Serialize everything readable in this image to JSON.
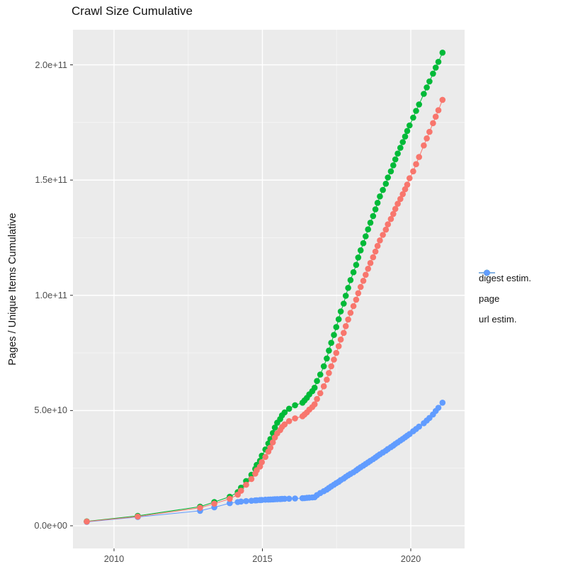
{
  "title": "Crawl Size Cumulative",
  "colors": {
    "panel_bg": "#EBEBEB",
    "grid_major": "#FFFFFF",
    "grid_minor": "#F6F6F6",
    "tick_mark": "#333333",
    "axis_text": "#4D4D4D",
    "title_text": "#141414"
  },
  "chart_data": {
    "type": "scatter",
    "title": "Crawl Size Cumulative",
    "xlabel": "",
    "ylabel": "Pages / Unique Items Cumulative",
    "legend_position": "right",
    "grid": "on",
    "xlim_years": [
      2008.55,
      2021.8
    ],
    "ylim": [
      -10000000000.0,
      215000000000.0
    ],
    "x_ticks": [
      {
        "label": "2010",
        "year": 2010
      },
      {
        "label": "2015",
        "year": 2015
      },
      {
        "label": "2020",
        "year": 2020
      }
    ],
    "x_minor_years": [
      2012.5,
      2017.5
    ],
    "y_ticks": [
      {
        "label": "0.0e+00",
        "value_e9": 0
      },
      {
        "label": "5.0e+10",
        "value_e9": 50
      },
      {
        "label": "1.0e+11",
        "value_e9": 100
      },
      {
        "label": "1.5e+11",
        "value_e9": 150
      },
      {
        "label": "2.0e+11",
        "value_e9": 200
      }
    ],
    "y_minor_e9": [
      25,
      75,
      125,
      175
    ],
    "x_years": [
      2009.08,
      2010.8,
      2012.9,
      2013.38,
      2013.9,
      2014.17,
      2014.28,
      2014.45,
      2014.63,
      2014.76,
      2014.81,
      2014.92,
      2014.98,
      2015.1,
      2015.2,
      2015.27,
      2015.35,
      2015.42,
      2015.5,
      2015.6,
      2015.66,
      2015.75,
      2015.9,
      2016.1,
      2016.35,
      2016.42,
      2016.5,
      2016.58,
      2016.68,
      2016.76,
      2016.84,
      2016.95,
      2017.07,
      2017.17,
      2017.24,
      2017.32,
      2017.41,
      2017.49,
      2017.57,
      2017.64,
      2017.74,
      2017.81,
      2017.89,
      2017.97,
      2018.07,
      2018.16,
      2018.23,
      2018.31,
      2018.4,
      2018.48,
      2018.56,
      2018.64,
      2018.73,
      2018.81,
      2018.88,
      2018.96,
      2019.06,
      2019.16,
      2019.23,
      2019.33,
      2019.41,
      2019.48,
      2019.56,
      2019.65,
      2019.73,
      2019.81,
      2019.88,
      2019.96,
      2020.08,
      2020.18,
      2020.28,
      2020.44,
      2020.54,
      2020.63,
      2020.75,
      2020.84,
      2020.93,
      2021.07
    ],
    "series": [
      {
        "name": "digest estim.",
        "color": "#F8766D",
        "values_e9": [
          1.8,
          4.0,
          7.8,
          9.6,
          11.7,
          13.5,
          15.2,
          17.8,
          20.3,
          22.6,
          24.1,
          25.7,
          27.6,
          29.9,
          32.2,
          33.9,
          36.2,
          38.3,
          40.1,
          41.5,
          42.9,
          44.0,
          45.4,
          46.6,
          47.5,
          48.3,
          49.2,
          50.4,
          51.5,
          52.7,
          55.0,
          57.5,
          60.5,
          63.4,
          66.3,
          69.2,
          72.1,
          75.0,
          77.9,
          80.8,
          83.7,
          86.6,
          89.5,
          92.4,
          95.3,
          98.1,
          100.9,
          103.6,
          106.3,
          108.9,
          111.5,
          114.0,
          116.5,
          119.0,
          121.4,
          123.8,
          126.2,
          128.5,
          130.8,
          133.1,
          135.3,
          137.5,
          139.7,
          141.8,
          143.9,
          146.0,
          148.0,
          150.8,
          153.8,
          156.9,
          160.0,
          165.0,
          168.1,
          170.9,
          174.7,
          177.5,
          180.3,
          184.8
        ]
      },
      {
        "name": "page",
        "color": "#00BA38",
        "values_e9": [
          1.9,
          4.3,
          8.3,
          10.3,
          12.6,
          14.6,
          16.5,
          19.4,
          22.1,
          24.7,
          26.4,
          28.2,
          30.4,
          33.1,
          35.7,
          37.6,
          40.2,
          42.6,
          44.7,
          46.3,
          47.9,
          49.2,
          50.8,
          52.3,
          53.4,
          54.4,
          55.5,
          57.0,
          58.4,
          59.9,
          62.8,
          65.6,
          69.2,
          72.6,
          76.0,
          79.4,
          82.8,
          86.2,
          89.6,
          93.0,
          96.4,
          99.8,
          103.2,
          106.6,
          110.0,
          113.2,
          116.4,
          119.5,
          122.6,
          125.6,
          128.6,
          131.5,
          134.4,
          137.3,
          140.1,
          142.9,
          145.7,
          148.4,
          151.1,
          153.8,
          156.4,
          159.0,
          161.5,
          164.0,
          166.5,
          168.9,
          171.3,
          173.7,
          177.1,
          180.0,
          182.8,
          187.4,
          190.2,
          192.8,
          196.2,
          198.8,
          201.3,
          205.3
        ]
      },
      {
        "name": "url estim.",
        "color": "#619CFF",
        "values_e9": [
          1.7,
          3.8,
          6.5,
          8.0,
          9.8,
          10.3,
          10.5,
          10.7,
          10.85,
          11.0,
          11.05,
          11.15,
          11.2,
          11.3,
          11.35,
          11.4,
          11.45,
          11.5,
          11.55,
          11.6,
          11.65,
          11.7,
          11.75,
          11.85,
          11.95,
          12.0,
          12.1,
          12.2,
          12.3,
          12.4,
          13.3,
          14.2,
          15.0,
          15.7,
          16.4,
          17.1,
          17.8,
          18.5,
          19.1,
          19.8,
          20.5,
          21.2,
          21.9,
          22.5,
          23.2,
          24.0,
          24.7,
          25.4,
          26.1,
          26.8,
          27.5,
          28.2,
          28.9,
          29.6,
          30.3,
          31.0,
          31.8,
          32.6,
          33.3,
          34.1,
          34.8,
          35.5,
          36.2,
          37.0,
          37.7,
          38.4,
          39.1,
          39.8,
          41.0,
          42.0,
          43.0,
          44.5,
          45.7,
          46.8,
          48.3,
          49.8,
          51.2,
          53.4
        ]
      }
    ],
    "draw_order": [
      2,
      1,
      0
    ]
  },
  "legend": {
    "items": [
      {
        "label": "digest estim."
      },
      {
        "label": "page"
      },
      {
        "label": "url estim."
      }
    ]
  }
}
